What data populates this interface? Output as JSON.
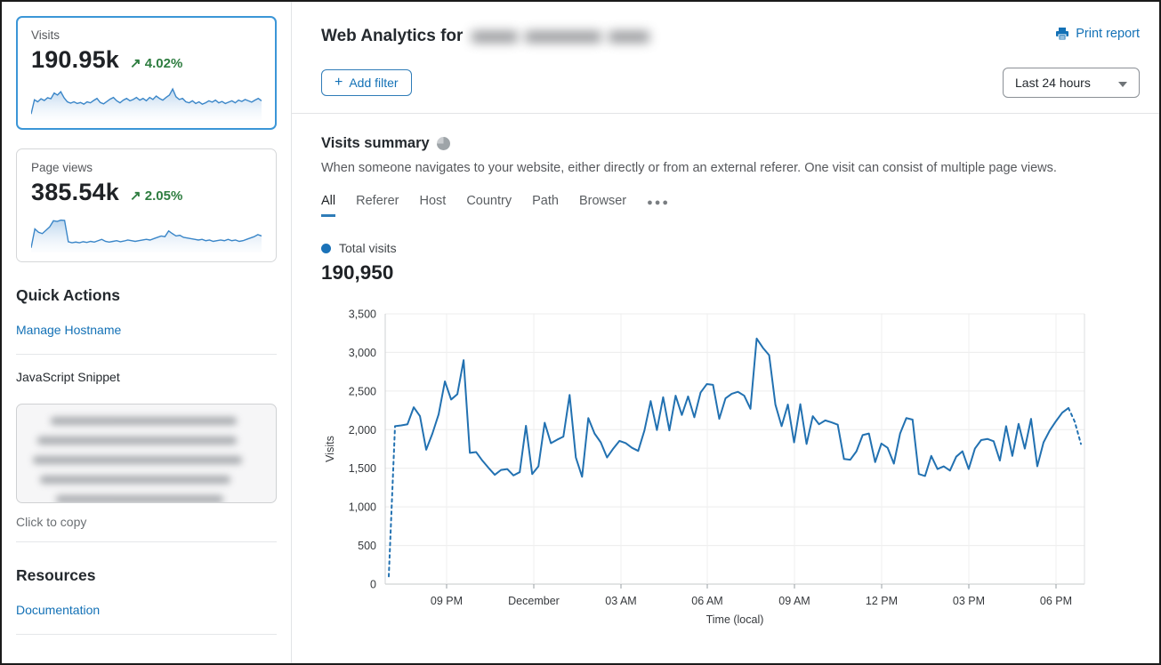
{
  "colors": {
    "accent_link": "#1371b6",
    "chart_line": "#2271b1",
    "selected_card_border": "#3b96d7",
    "positive_green": "#2e7d40"
  },
  "sidebar": {
    "metrics": [
      {
        "label": "Visits",
        "value": "190.95k",
        "change_arrow": "↗",
        "change": "4.02%",
        "selected": true,
        "spark": [
          10,
          52,
          46,
          55,
          50,
          58,
          55,
          72,
          66,
          76,
          58,
          46,
          42,
          46,
          41,
          44,
          39,
          46,
          43,
          50,
          56,
          44,
          40,
          47,
          54,
          59,
          49,
          43,
          51,
          56,
          49,
          53,
          59,
          51,
          56,
          49,
          59,
          53,
          63,
          56,
          51,
          59,
          66,
          84,
          61,
          53,
          56,
          46,
          43,
          49,
          41,
          46,
          39,
          43,
          49,
          45,
          51,
          43,
          47,
          41,
          45,
          49,
          43,
          51,
          47,
          53,
          49,
          45,
          51,
          56,
          49
        ]
      },
      {
        "label": "Page views",
        "value": "385.54k",
        "change_arrow": "↗",
        "change": "2.05%",
        "selected": false,
        "spark": [
          6,
          62,
          52,
          48,
          58,
          68,
          86,
          84,
          88,
          87,
          24,
          21,
          23,
          21,
          24,
          22,
          25,
          23,
          27,
          31,
          25,
          23,
          25,
          27,
          24,
          26,
          29,
          27,
          25,
          27,
          29,
          31,
          29,
          33,
          37,
          41,
          39,
          56,
          48,
          41,
          43,
          37,
          35,
          33,
          31,
          29,
          31,
          27,
          29,
          25,
          27,
          29,
          27,
          31,
          27,
          29,
          25,
          27,
          31,
          35,
          39,
          45,
          41
        ]
      }
    ],
    "quick_actions": {
      "title": "Quick Actions",
      "manage_hostname_label": "Manage Hostname",
      "snippet_label": "JavaScript Snippet",
      "copy_hint": "Click to copy"
    },
    "resources": {
      "title": "Resources",
      "documentation_label": "Documentation"
    }
  },
  "header": {
    "title": "Web Analytics for",
    "print_label": "Print report"
  },
  "controls": {
    "add_filter": {
      "icon": "+",
      "label": "Add filter"
    },
    "time_range": "Last 24 hours"
  },
  "summary": {
    "title": "Visits summary",
    "description": "When someone navigates to your website, either directly or from an external referer. One visit can consist of multiple page views.",
    "tabs": [
      "All",
      "Referer",
      "Host",
      "Country",
      "Path",
      "Browser"
    ],
    "active_tab": "All",
    "tabs_more": "●●●",
    "legend_label": "Total visits",
    "total": "190,950"
  },
  "chart_data": {
    "type": "line",
    "title": "Visits summary",
    "xlabel": "Time (local)",
    "ylabel": "Visits",
    "ylim": [
      0,
      3500
    ],
    "y_ticks": [
      0,
      500,
      1000,
      1500,
      2000,
      2500,
      3000,
      3500
    ],
    "x_tick_labels": [
      "09 PM",
      "December",
      "03 AM",
      "06 AM",
      "09 AM",
      "12 PM",
      "03 PM",
      "06 PM"
    ],
    "grid": true,
    "legend_position": "top-left",
    "line_color": "#2271b1",
    "dashed_head_points": 2,
    "dashed_tail_points": 3,
    "series": [
      {
        "name": "Total visits",
        "values": [
          100,
          2045,
          2055,
          2070,
          2290,
          2175,
          1740,
          1950,
          2200,
          2625,
          2390,
          2460,
          2900,
          1700,
          1710,
          1600,
          1505,
          1415,
          1478,
          1490,
          1407,
          1450,
          2050,
          1425,
          1525,
          2090,
          1825,
          1870,
          1910,
          2450,
          1640,
          1390,
          2150,
          1950,
          1835,
          1640,
          1755,
          1855,
          1825,
          1765,
          1725,
          1990,
          2370,
          1995,
          2420,
          1990,
          2440,
          2190,
          2430,
          2160,
          2480,
          2590,
          2580,
          2140,
          2405,
          2465,
          2490,
          2440,
          2270,
          3180,
          3060,
          2965,
          2325,
          2045,
          2325,
          1835,
          2330,
          1815,
          2175,
          2070,
          2120,
          2095,
          2065,
          1620,
          1610,
          1720,
          1930,
          1950,
          1580,
          1820,
          1765,
          1560,
          1950,
          2150,
          2130,
          1425,
          1400,
          1660,
          1490,
          1525,
          1470,
          1650,
          1720,
          1490,
          1755,
          1865,
          1880,
          1850,
          1600,
          2045,
          1660,
          2075,
          1755,
          2140,
          1525,
          1835,
          1990,
          2110,
          2220,
          2280,
          2105,
          1815
        ]
      }
    ]
  }
}
